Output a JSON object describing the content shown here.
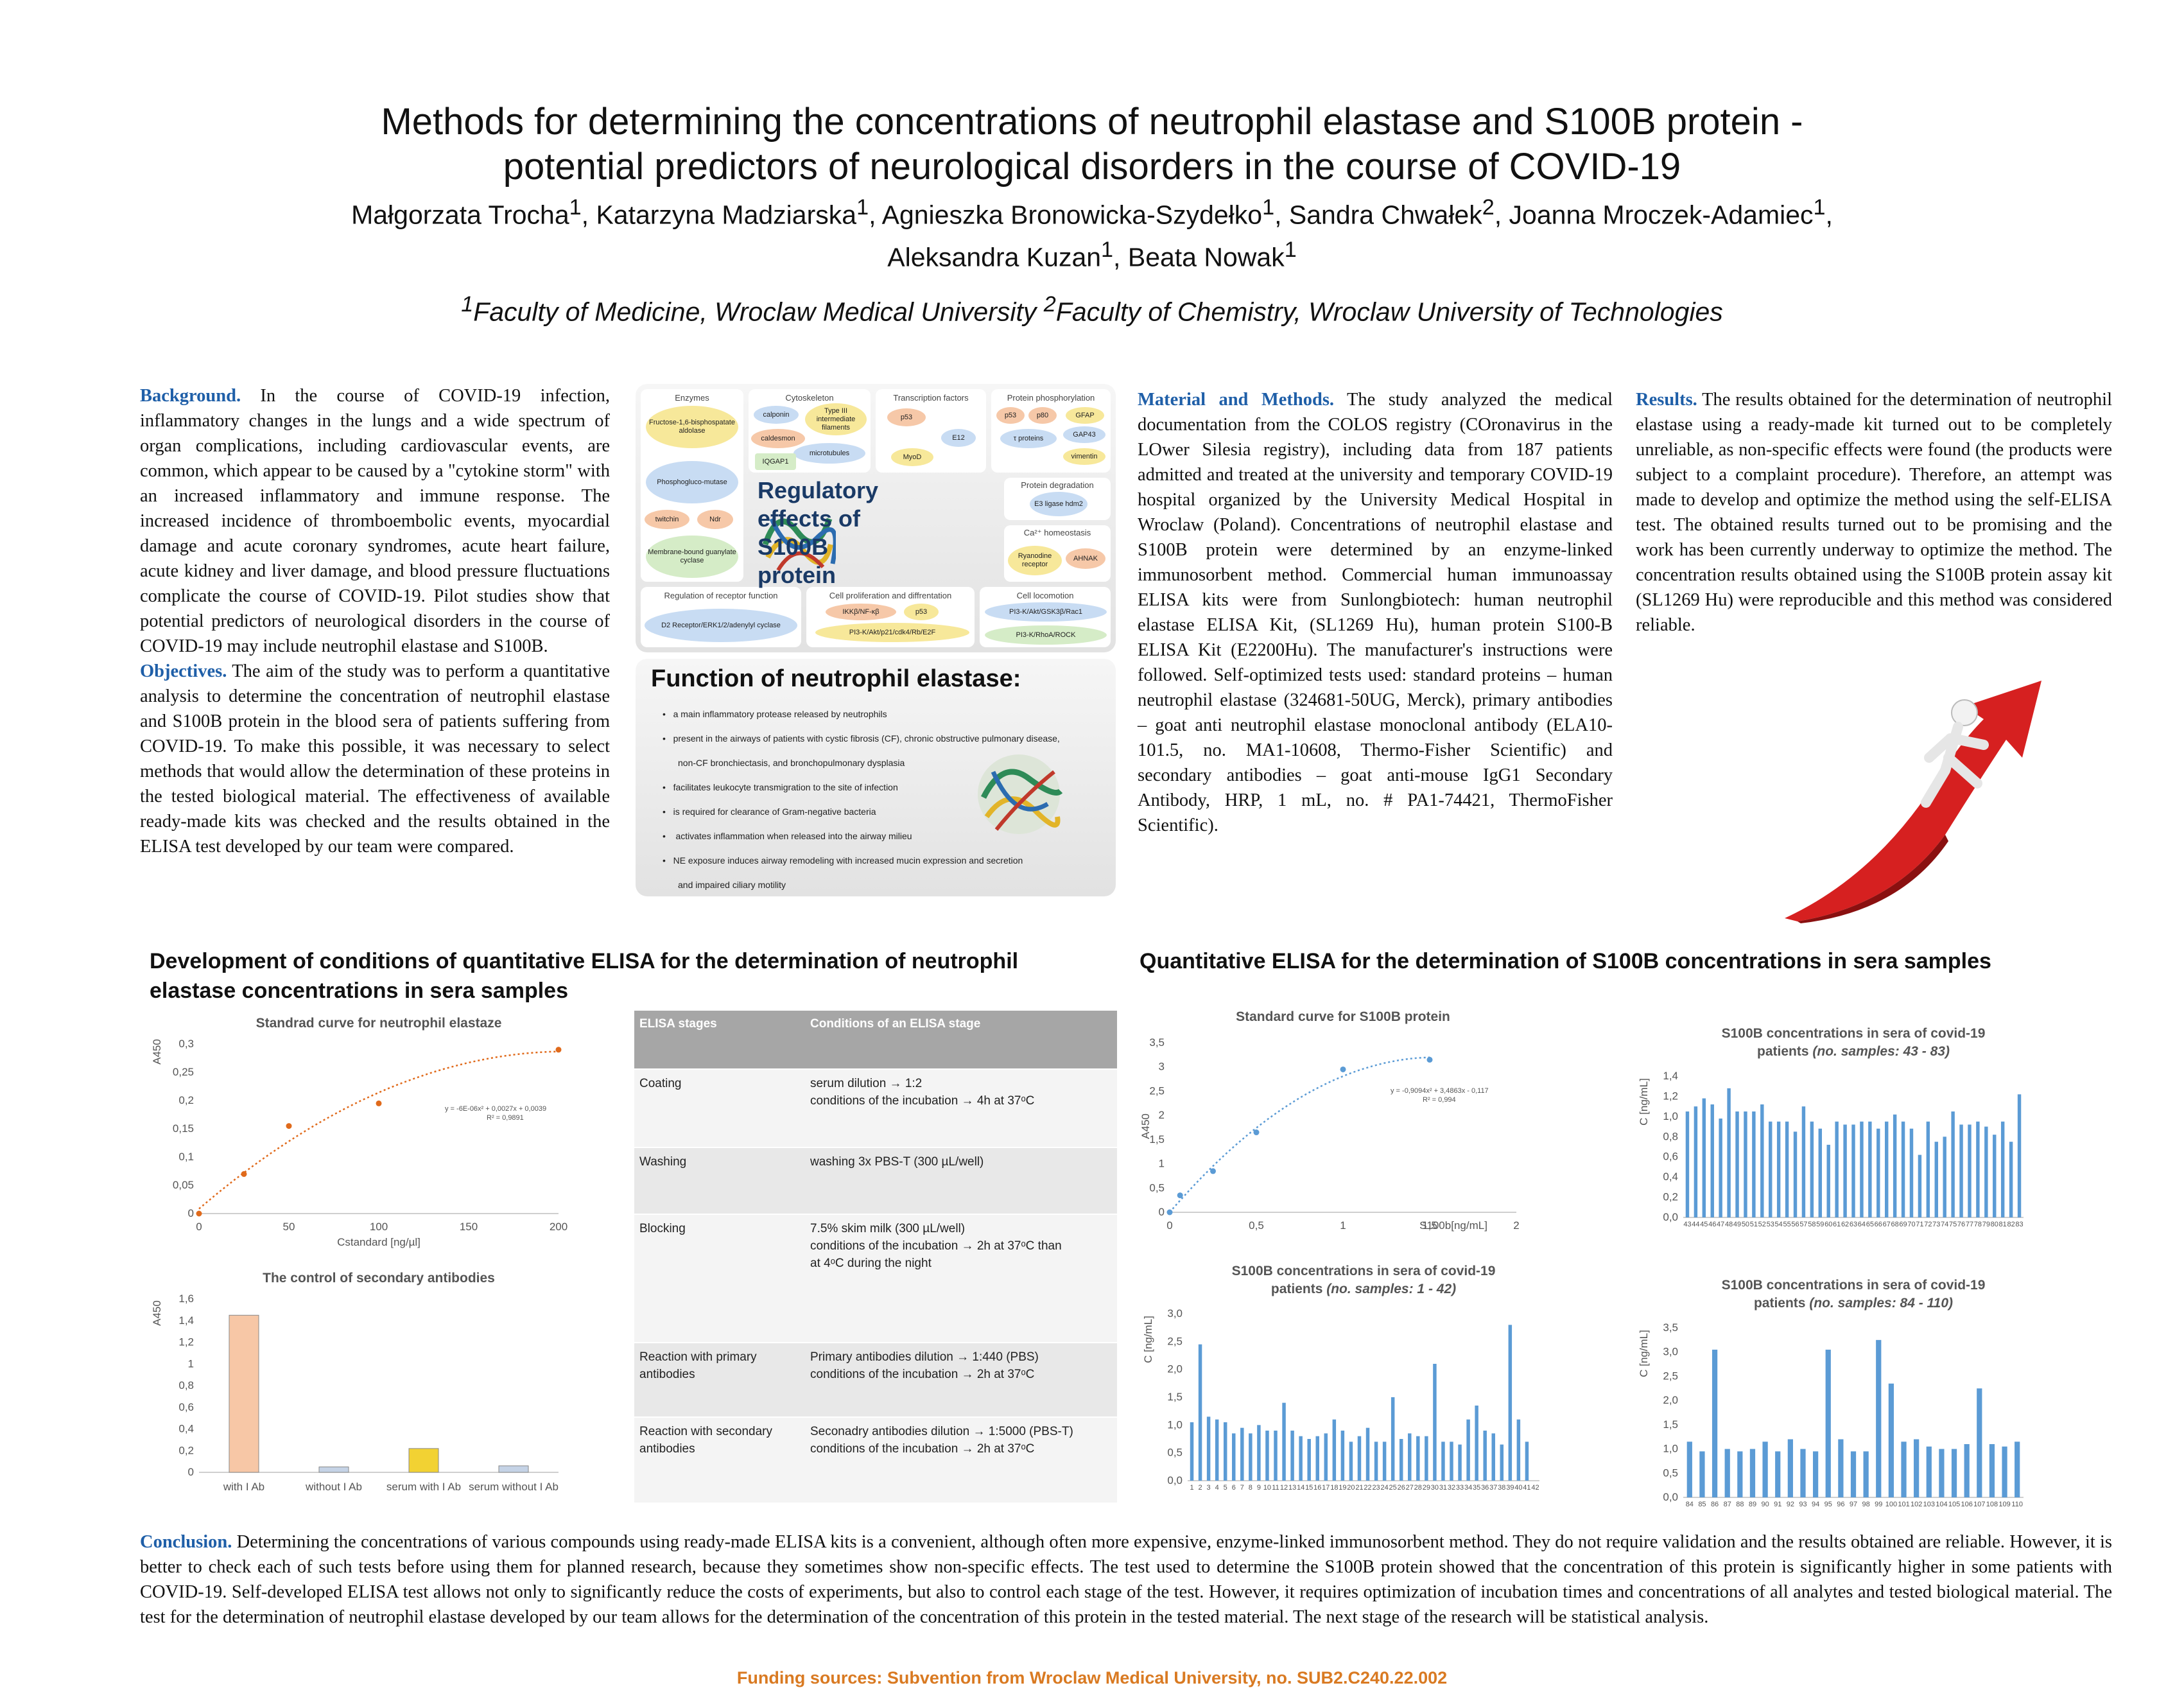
{
  "title": {
    "line1": "Methods for determining the concentrations of neutrophil elastase and S100B protein -",
    "line2": "potential predictors of neurological disorders in the course of COVID-19"
  },
  "authors": {
    "a1": "Małgorzata Trocha",
    "a2": "Katarzyna Madziarska",
    "a3": "Agnieszka Bronowicka-Szydełko",
    "a4": "Sandra Chwałek",
    "a5": "Joanna Mroczek-Adamiec",
    "a6": "Aleksandra Kuzan",
    "a7": "Beata Nowak",
    "s1": "1",
    "s2": "2"
  },
  "affiliations": {
    "sup1": "1",
    "aff1": "Faculty of Medicine, Wroclaw Medical University ",
    "sup2": "2",
    "aff2": "Faculty of Chemistry, Wroclaw University of Technologies"
  },
  "background": {
    "lead": "Background.",
    "text": " In the course of COVID-19 infection, inflammatory changes in the lungs and a wide spectrum of organ complications, including cardiovascular events, are common, which appear to be caused by a \"cytokine storm\" with an increased inflammatory and immune response. The increased incidence of thromboembolic events, myocardial damage and acute coronary syndromes, acute heart failure, acute kidney and liver damage, and blood pressure fluctuations complicate the course of COVID-19. Pilot studies show that potential predictors of neurological disorders in the course of COVID-19 may include neutrophil elastase and S100B."
  },
  "objectives": {
    "lead": "Objectives.",
    "text": " The aim of the study was to perform a quantitative analysis to determine the concentration of neutrophil elastase and S100B protein in the blood sera of patients suffering from COVID-19. To make this possible, it was necessary to select methods that would allow the determination of these proteins in the tested biological material. The effectiveness of available ready-made kits was checked and the results obtained in the ELISA test developed by our team were compared."
  },
  "methods": {
    "lead": "Material and Methods.",
    "text": " The study analyzed the medical documentation from the COLOS registry (COronavirus in the LOwer Silesia registry), including data from 187 patients admitted and treated at the university and temporary COVID-19 hospital organized by the University Medical Hospital in Wroclaw (Poland). Concentrations of neutrophil elastase and S100B protein were determined by an enzyme-linked immunosorbent method. Commercial human immunoassay ELISA kits were from Sunlongbiotech: human neutrophil elastase ELISA Kit, (SL1269 Hu), human protein S100-B ELISA Kit (E2200Hu). The manufacturer's instructions were followed. Self-optimized tests used: standard proteins – human neutrophil elastase (324681-50UG, Merck), primary antibodies – goat anti neutrophil elastase monoclonal antibody (ELA10-101.5, no. MA1-10608, Thermo-Fisher Scientific) and secondary antibodies – goat anti-mouse IgG1 Secondary Antibody, HRP, 1 mL, no. # PA1-74421, ThermoFisher Scientific)."
  },
  "results": {
    "lead": "Results.",
    "text": " The results obtained for the determination of neutrophil elastase using a ready-made kit turned out to be completely unreliable, as non-specific effects were found (the products were subject to a complaint procedure). Therefore, an attempt was made to develop and optimize the method using the self-ELISA test. The obtained results turned out to be promising and the work has been currently underway to optimize the method. The concentration results obtained using the S100B protein assay kit (SL1269 Hu) were reproducible and this method was considered reliable."
  },
  "regulatory": {
    "title": "Regulatory effects of S100B protein",
    "enzymes": "Enzymes",
    "cytoskeleton": "Cytoskeleton",
    "transcription": "Transcription factors",
    "phosphorylation": "Protein phosphorylation",
    "degradation": "Protein degradation",
    "homeostasis": "Ca²⁺ homeostasis",
    "receptor": "Regulation of receptor function",
    "proliferation": "Cell proliferation and diffrentation",
    "locomotion": "Cell locomotion",
    "p_fructose": "Fructose-1,6-bisphospatate aldolase",
    "p_phospho": "Phosphogluco-mutase",
    "p_twitchin": "twitchin",
    "p_ndr": "Ndr",
    "p_membrane": "Membrane-bound guanylate cyclase",
    "p_calponin": "calponin",
    "p_type3": "Type III intermediate filaments",
    "p_caldesmon": "caldesmon",
    "p_microtubules": "microtubules",
    "p_iqgap": "IQGAP1",
    "p_p53": "p53",
    "p_e12": "E12",
    "p_myod": "MyoD",
    "p_p53b": "p53",
    "p_p80": "p80",
    "p_gfap": "GFAP",
    "p_tau": "τ proteins",
    "p_gap43": "GAP43",
    "p_vim": "vimentin",
    "p_e3": "E3 ligase hdm2",
    "p_ryan": "Ryanodine receptor",
    "p_ahnak": "AHNAK",
    "p_d2": "D2 Receptor/ERK1/2/adenylyl cyclase",
    "p_ikk": "IKKβ/NF-κβ",
    "p_p53c": "p53",
    "p_pi3akt": "PI3-K/Akt/p21/cdk4/Rb/E2F",
    "p_pi3gsk": "PI3-K/Akt/GSK3β/Rac1",
    "p_pi3rho": "PI3-K/RhoA/ROCK"
  },
  "elastase": {
    "title": "Function of neutrophil elastase:",
    "items": [
      "a main inflammatory protease released by neutrophils",
      "present in the airways of patients with cystic fibrosis (CF), chronic obstructive pulmonary disease,",
      "non-CF bronchiectasis, and bronchopulmonary dysplasia",
      "facilitates leukocyte transmigration to the site of infection",
      "is required for clearance of Gram-negative bacteria",
      "activates inflammation when released into the airway milieu",
      "NE exposure induces airway remodeling with increased mucin expression and secretion",
      "and impaired ciliary motility"
    ]
  },
  "section_left": {
    "heading": "Development of conditions of quantitative ELISA for the determination of neutrophil elastase concentrations in sera samples"
  },
  "section_right": {
    "heading": "Quantitative ELISA for the determination of S100B concentrations in sera samples"
  },
  "elisa_table": {
    "col1": "ELISA stages",
    "col2": "Conditions of an ELISA stage",
    "rows": [
      {
        "stage": "Coating",
        "l1": "serum dilution → 1:2",
        "l2": "conditions of the incubation → 4h at 37ᵒC",
        "l3": ""
      },
      {
        "stage": "Washing",
        "l1": "washing 3x PBS-T (300 µL/well)",
        "l2": "",
        "l3": ""
      },
      {
        "stage": "Blocking",
        "l1": "7.5% skim milk (300 µL/well)",
        "l2": "conditions of the incubation → 2h at 37ᵒC than",
        "l3": "at 4ᵒC during the night"
      },
      {
        "stage": "Reaction with primary antibodies",
        "l1": "Primary antibodies dilution → 1:440 (PBS)",
        "l2": "conditions of the incubation → 2h at 37ᵒC",
        "l3": ""
      },
      {
        "stage": "Reaction with secondary antibodies",
        "l1": "Seconadry antibodies dilution → 1:5000 (PBS-T)",
        "l2": "conditions of the incubation → 2h at 37ᵒC",
        "l3": ""
      }
    ]
  },
  "conclusion": {
    "lead": "Conclusion.",
    "text": " Determining the concentrations of various compounds using ready-made ELISA kits is a convenient, although often more expensive, enzyme-linked immunosorbent method. They do not require validation and the results obtained are reliable. However, it is better to check each of such tests before using them for planned research, because they sometimes show non-specific effects. The test used to determine the S100B protein showed that the concentration of this protein is significantly higher in some patients with COVID-19. Self-developed ELISA test allows not only to significantly reduce the costs of experiments, but also to control each stage of the test. However, it requires optimization of incubation times and concentrations of all analytes and tested biological material. The test for the determination of neutrophil elastase developed by our team allows for the determination of the concentration of this protein in the tested material. The next stage of the research will be statistical analysis."
  },
  "funding": "Funding sources: Subvention from Wroclaw Medical University, no. SUB2.C240.22.002",
  "colors": {
    "lead_blue": "#1f5fa8",
    "orange": "#e06a1b",
    "blue_series": "#5b9bd5",
    "funding": "#d97a22"
  },
  "chart_data": [
    {
      "id": "ne_standard",
      "type": "scatter",
      "title": "Standrad curve for neutrophil elastaze",
      "xlabel": "Cstandard [ng/µl]",
      "ylabel": "A450",
      "xlim": [
        0,
        200
      ],
      "ylim": [
        0,
        0.3
      ],
      "xticks": [
        "0",
        "50",
        "100",
        "150",
        "200"
      ],
      "yticks": [
        "0",
        "0,05",
        "0,1",
        "0,15",
        "0,2",
        "0,25",
        "0,3"
      ],
      "x": [
        0,
        25,
        50,
        100,
        200
      ],
      "y": [
        0,
        0.07,
        0.155,
        0.195,
        0.29
      ],
      "trendline": "polynomial",
      "equation": "y = -6E-06x² + 0,0027x + 0,0039",
      "r2": "R² = 0,9891"
    },
    {
      "id": "secondary_control",
      "type": "bar",
      "title": "The control of secondary antibodies",
      "ylabel": "A450",
      "ylim": [
        0,
        1.6
      ],
      "yticks": [
        "0",
        "0,2",
        "0,4",
        "0,6",
        "0,8",
        "1",
        "1,2",
        "1,4",
        "1,6"
      ],
      "categories": [
        "with I Ab",
        "without I Ab",
        "serum with I Ab",
        "serum without I Ab"
      ],
      "values": [
        1.45,
        0.05,
        0.22,
        0.06
      ],
      "bar_colors": [
        "#f7c7a6",
        "#c5d3e6",
        "#f2d233",
        "#c5d3e6"
      ]
    },
    {
      "id": "s100b_standard",
      "type": "scatter",
      "title": "Standard curve for S100B protein",
      "xlabel": "S100b[ng/mL]",
      "ylabel": "A450",
      "xlim": [
        0,
        2
      ],
      "ylim": [
        0,
        3.5
      ],
      "xticks": [
        "0",
        "0,5",
        "1",
        "1,5",
        "2"
      ],
      "yticks": [
        "0",
        "0,5",
        "1",
        "1,5",
        "2",
        "2,5",
        "3",
        "3,5"
      ],
      "x": [
        0,
        0.06,
        0.25,
        0.5,
        1.0,
        1.5
      ],
      "y": [
        0,
        0.35,
        0.85,
        1.65,
        2.95,
        3.15
      ],
      "trendline": "polynomial",
      "equation": "y = -0,9094x² + 3,4863x - 0,117",
      "r2": "R² = 0,994"
    },
    {
      "id": "s100b_1_42",
      "type": "bar",
      "title": "S100B concentrations in sera of covid-19",
      "subtitle": "patients",
      "subtitle_italic": "(no. samples: 1 - 42)",
      "ylabel": "C [ng/mL]",
      "ylim": [
        0,
        3.0
      ],
      "yticks": [
        "0,0",
        "0,5",
        "1,0",
        "1,5",
        "2,0",
        "2,5",
        "3,0"
      ],
      "categories": [
        "1",
        "2",
        "3",
        "4",
        "5",
        "6",
        "7",
        "8",
        "9",
        "10",
        "11",
        "12",
        "13",
        "14",
        "15",
        "16",
        "17",
        "18",
        "19",
        "20",
        "21",
        "22",
        "23",
        "24",
        "25",
        "26",
        "27",
        "28",
        "29",
        "30",
        "31",
        "32",
        "33",
        "34",
        "35",
        "36",
        "37",
        "38",
        "39",
        "40",
        "41",
        "42"
      ],
      "values": [
        1.05,
        2.45,
        1.15,
        1.1,
        1.05,
        0.85,
        0.95,
        0.85,
        1.0,
        0.9,
        0.9,
        1.4,
        0.9,
        0.8,
        0.75,
        0.8,
        0.85,
        1.1,
        0.9,
        0.7,
        0.8,
        0.95,
        0.7,
        0.7,
        1.5,
        0.75,
        0.85,
        0.8,
        0.8,
        2.1,
        0.7,
        0.7,
        0.65,
        1.1,
        1.35,
        0.9,
        0.85,
        0.65,
        2.8,
        1.1,
        0.7,
        0.0
      ],
      "color": "#5b9bd5"
    },
    {
      "id": "s100b_43_83",
      "type": "bar",
      "title": "S100B concentrations in sera of covid-19",
      "subtitle": "patients",
      "subtitle_italic": "(no. samples: 43 - 83)",
      "ylabel": "C [ng/mL]",
      "ylim": [
        0,
        1.4
      ],
      "yticks": [
        "0,0",
        "0,2",
        "0,4",
        "0,6",
        "0,8",
        "1,0",
        "1,2",
        "1,4"
      ],
      "categories": [
        "43",
        "44",
        "45",
        "46",
        "47",
        "48",
        "49",
        "50",
        "51",
        "52",
        "53",
        "54",
        "55",
        "56",
        "57",
        "58",
        "59",
        "60",
        "61",
        "62",
        "63",
        "64",
        "65",
        "66",
        "67",
        "68",
        "69",
        "70",
        "71",
        "72",
        "73",
        "74",
        "75",
        "76",
        "77",
        "78",
        "79",
        "80",
        "81",
        "82",
        "83"
      ],
      "values": [
        1.05,
        1.1,
        1.18,
        1.12,
        0.98,
        1.28,
        1.05,
        1.05,
        1.05,
        1.12,
        0.95,
        0.95,
        0.95,
        0.85,
        1.1,
        0.95,
        0.88,
        0.72,
        0.95,
        0.92,
        0.92,
        0.95,
        0.95,
        0.88,
        0.95,
        1.02,
        0.95,
        0.88,
        0.62,
        0.95,
        0.75,
        0.8,
        1.05,
        0.92,
        0.92,
        0.95,
        0.9,
        0.82,
        0.95,
        0.75,
        1.22
      ],
      "color": "#5b9bd5"
    },
    {
      "id": "s100b_84_110",
      "type": "bar",
      "title": "S100B concentrations in sera of covid-19",
      "subtitle": "patients",
      "subtitle_italic": "(no. samples: 84 - 110)",
      "ylabel": "C [ng/mL]",
      "ylim": [
        0,
        3.5
      ],
      "yticks": [
        "0,0",
        "0,5",
        "1,0",
        "1,5",
        "2,0",
        "2,5",
        "3,0",
        "3,5"
      ],
      "categories": [
        "84",
        "85",
        "86",
        "87",
        "88",
        "89",
        "90",
        "91",
        "92",
        "93",
        "94",
        "95",
        "96",
        "97",
        "98",
        "99",
        "100",
        "101",
        "102",
        "103",
        "104",
        "105",
        "106",
        "107",
        "108",
        "109",
        "110"
      ],
      "values": [
        1.15,
        0.95,
        3.05,
        1.0,
        0.95,
        1.0,
        1.15,
        0.95,
        1.2,
        1.0,
        0.95,
        3.05,
        1.2,
        0.95,
        0.95,
        3.25,
        2.35,
        1.15,
        1.2,
        1.05,
        1.0,
        1.0,
        1.1,
        2.25,
        1.1,
        1.05,
        1.15
      ],
      "color": "#5b9bd5"
    }
  ]
}
